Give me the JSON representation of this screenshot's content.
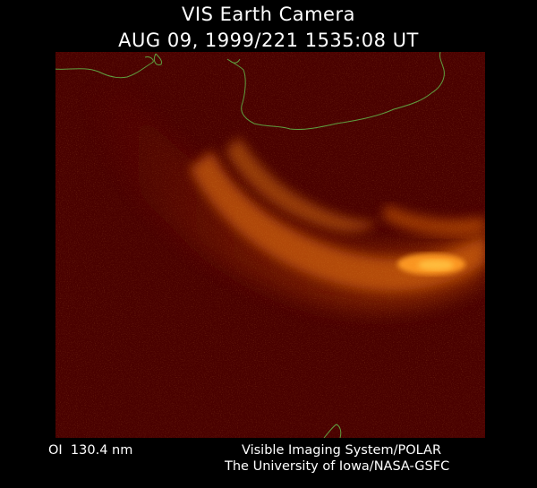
{
  "header": {
    "instrument_title": "VIS Earth Camera",
    "timestamp": "AUG 09, 1999/221 1535:08 UT"
  },
  "image": {
    "background_color": "#4a0100",
    "aurora_color": "#ff8a10",
    "coastline_color": "#5fa040"
  },
  "footer": {
    "filter_label": "OI  130.4 nm",
    "credit_line1": "Visible Imaging System/POLAR",
    "credit_line2": "The University of Iowa/NASA-GSFC"
  }
}
